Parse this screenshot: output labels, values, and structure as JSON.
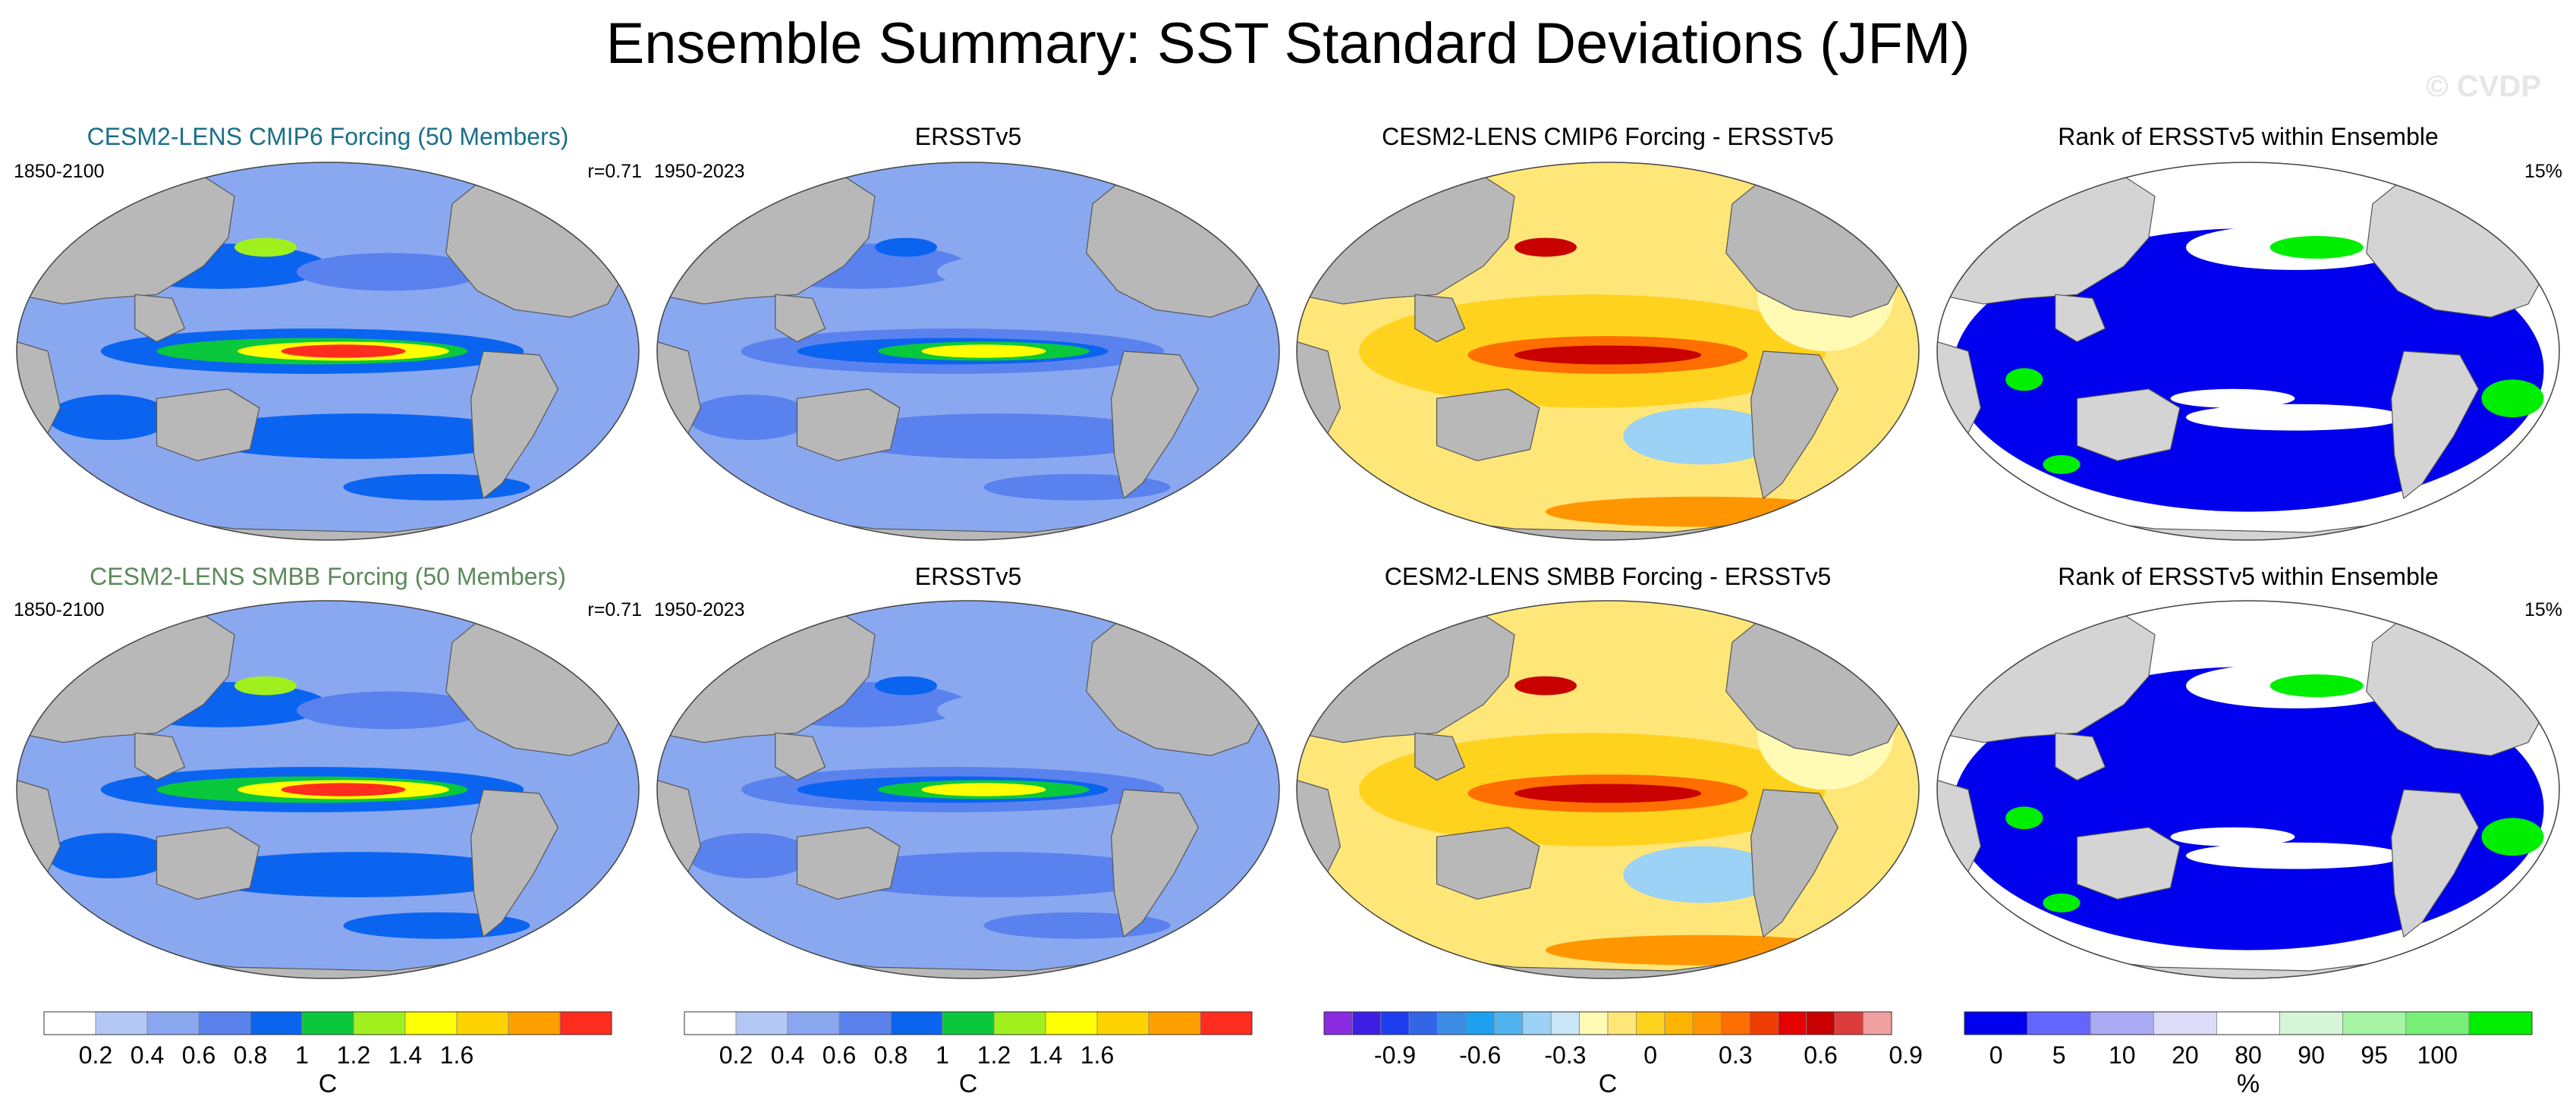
{
  "title": "Ensemble Summary: SST Standard Deviations (JFM)",
  "watermark": "© CVDP",
  "colors": {
    "cmip6_title": "#1a6f8a",
    "smbb_title": "#5a8a5a",
    "land": "#b8b8b8",
    "land_rank": "#d4d4d4"
  },
  "rows": [
    {
      "panels": [
        {
          "kind": "std",
          "title": "CESM2-LENS CMIP6 Forcing (50 Members)",
          "title_color": "cmip6",
          "left_text": "1850-2100",
          "right_text": "r=0.71",
          "intensity": 1.0
        },
        {
          "kind": "std",
          "title": "ERSSTv5",
          "left_text": "1950-2023",
          "right_text": "",
          "intensity": 0.72
        },
        {
          "kind": "diff",
          "title": "CESM2-LENS CMIP6 Forcing - ERSSTv5",
          "left_text": "",
          "right_text": ""
        },
        {
          "kind": "rank",
          "title": "Rank of ERSSTv5 within Ensemble",
          "left_text": "",
          "right_text": "15%"
        }
      ]
    },
    {
      "panels": [
        {
          "kind": "std",
          "title": "CESM2-LENS SMBB Forcing (50 Members)",
          "title_color": "smbb",
          "left_text": "1850-2100",
          "right_text": "r=0.71",
          "intensity": 0.96
        },
        {
          "kind": "std",
          "title": "ERSSTv5",
          "left_text": "1950-2023",
          "right_text": "",
          "intensity": 0.7
        },
        {
          "kind": "diff",
          "title": "CESM2-LENS SMBB Forcing - ERSSTv5",
          "left_text": "",
          "right_text": ""
        },
        {
          "kind": "rank",
          "title": "Rank of ERSSTv5 within Ensemble",
          "left_text": "",
          "right_text": "15%"
        }
      ]
    }
  ],
  "colorbars": [
    {
      "name": "std-colorbar-1",
      "unit": "C",
      "colors": [
        "#ffffff",
        "#b4c8f5",
        "#8aa8f0",
        "#5a82ee",
        "#0a64f0",
        "#0ac83c",
        "#a0f01e",
        "#ffff00",
        "#ffd200",
        "#ffa000",
        "#ff2d1e"
      ],
      "ticks": [
        "0.2",
        "0.4",
        "0.6",
        "0.8",
        "1",
        "1.2",
        "1.4",
        "1.6"
      ]
    },
    {
      "name": "std-colorbar-2",
      "unit": "C",
      "colors": [
        "#ffffff",
        "#b4c8f5",
        "#8aa8f0",
        "#5a82ee",
        "#0a64f0",
        "#0ac83c",
        "#a0f01e",
        "#ffff00",
        "#ffd200",
        "#ffa000",
        "#ff2d1e"
      ],
      "ticks": [
        "0.2",
        "0.4",
        "0.6",
        "0.8",
        "1",
        "1.2",
        "1.4",
        "1.6"
      ]
    },
    {
      "name": "diff-colorbar",
      "unit": "C",
      "colors": [
        "#8a2be2",
        "#3c1ee6",
        "#1e3cf0",
        "#3264e6",
        "#3c8ce6",
        "#1ea0f0",
        "#50b4f0",
        "#9bd2f5",
        "#c8e6f5",
        "#fffab4",
        "#ffe678",
        "#ffd21e",
        "#ffb400",
        "#ff9600",
        "#ff6e00",
        "#f03c00",
        "#e60000",
        "#c80000",
        "#dc3c3c",
        "#f0a0a0"
      ],
      "ticks": [
        "-0.9",
        "-0.6",
        "-0.3",
        "0",
        "0.3",
        "0.6",
        "0.9"
      ]
    },
    {
      "name": "rank-colorbar",
      "unit": "%",
      "colors": [
        "#0000ee",
        "#6464ff",
        "#aaaaf5",
        "#dcdcfa",
        "#ffffff",
        "#d7f5d7",
        "#a5f5a5",
        "#78f078",
        "#00ee00"
      ],
      "ticks": [
        "0",
        "5",
        "10",
        "20",
        "80",
        "90",
        "95",
        "100"
      ]
    }
  ]
}
